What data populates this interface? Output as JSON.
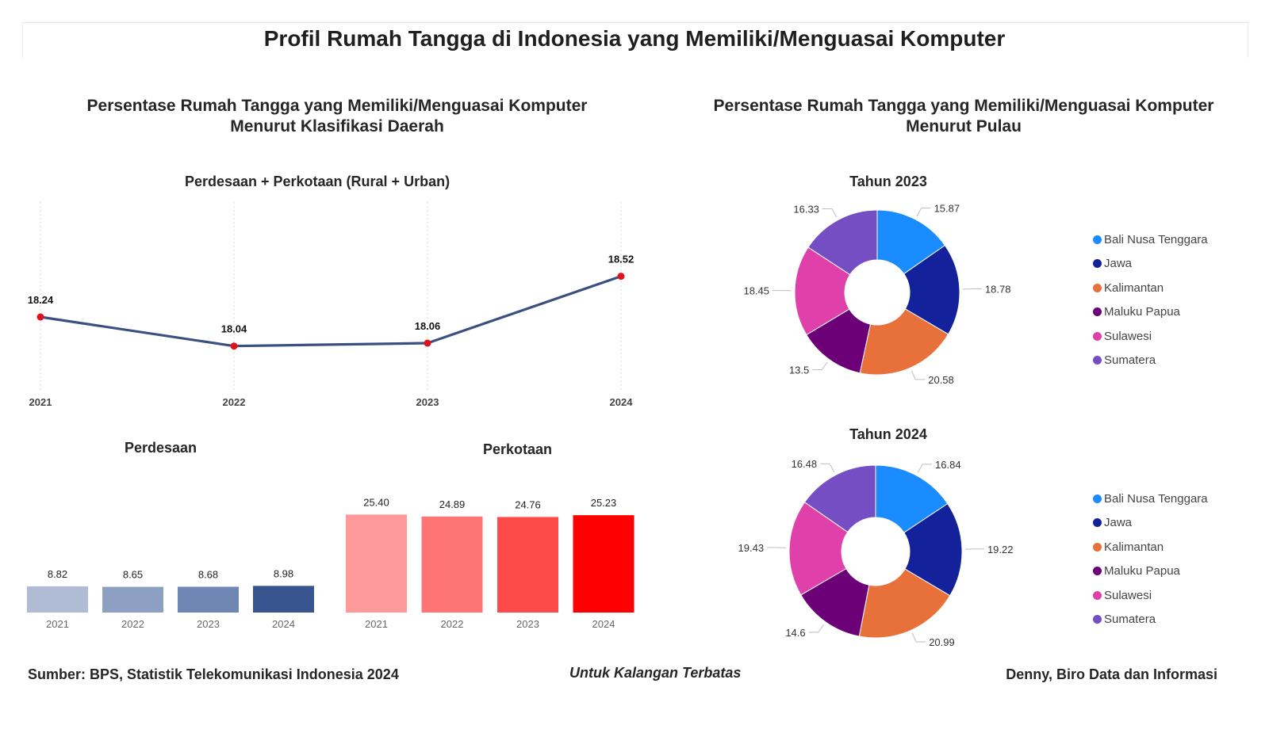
{
  "title": "Profil Rumah Tangga di Indonesia yang Memiliki/Menguasai Komputer",
  "left_section": {
    "title_line1": "Persentase Rumah Tangga yang Memiliki/Menguasai Komputer",
    "title_line2": "Menurut Klasifikasi Daerah"
  },
  "right_section": {
    "title_line1": "Persentase Rumah Tangga yang Memiliki/Menguasai Komputer",
    "title_line2": "Menurut Pulau"
  },
  "colors": {
    "line": "#3a5080",
    "line_point": "#e0121c",
    "rural_bars": [
      "#b0bcd4",
      "#8d9fc2",
      "#7086b3",
      "#385590"
    ],
    "urban_bars": [
      "#ff9a9a",
      "#ff7474",
      "#ff4a4a",
      "#ff0000"
    ],
    "islands": [
      "#1a8cff",
      "#13229a",
      "#e8703a",
      "#6b0077",
      "#e040aa",
      "#744ec2"
    ]
  },
  "chart_data": [
    {
      "type": "line",
      "title": "Perdesaan + Perkotaan (Rural + Urban)",
      "x": [
        "2021",
        "2022",
        "2023",
        "2024"
      ],
      "values": [
        18.24,
        18.04,
        18.06,
        18.52
      ],
      "labels": [
        "18.24",
        "18.04",
        "18.06",
        "18.52"
      ]
    },
    {
      "type": "bar",
      "title": "Perdesaan",
      "categories": [
        "2021",
        "2022",
        "2023",
        "2024"
      ],
      "values": [
        8.82,
        8.65,
        8.68,
        8.98
      ],
      "labels": [
        "8.82",
        "8.65",
        "8.68",
        "8.98"
      ]
    },
    {
      "type": "bar",
      "title": "Perkotaan",
      "categories": [
        "2021",
        "2022",
        "2023",
        "2024"
      ],
      "values": [
        25.4,
        24.89,
        24.76,
        25.23
      ],
      "labels": [
        "25.40",
        "24.89",
        "24.76",
        "25.23"
      ]
    },
    {
      "type": "pie",
      "title": "Tahun 2023",
      "categories": [
        "Bali Nusa Tenggara",
        "Jawa",
        "Kalimantan",
        "Maluku Papua",
        "Sulawesi",
        "Sumatera"
      ],
      "values": [
        15.87,
        18.78,
        20.58,
        13.5,
        18.45,
        16.33
      ],
      "labels": [
        "15.87",
        "18.78",
        "20.58",
        "13.5",
        "18.45",
        "16.33"
      ],
      "legend": "right"
    },
    {
      "type": "pie",
      "title": "Tahun 2024",
      "categories": [
        "Bali Nusa Tenggara",
        "Jawa",
        "Kalimantan",
        "Maluku Papua",
        "Sulawesi",
        "Sumatera"
      ],
      "values": [
        16.84,
        19.22,
        20.99,
        14.6,
        19.43,
        16.48
      ],
      "labels": [
        "16.84",
        "19.22",
        "20.99",
        "14.6",
        "19.43",
        "16.48"
      ],
      "legend": "right"
    }
  ],
  "footer": {
    "source": "Sumber: BPS, Statistik Telekomunikasi Indonesia 2024",
    "confidential": "Untuk Kalangan Terbatas",
    "author": "Denny, Biro Data dan Informasi"
  }
}
